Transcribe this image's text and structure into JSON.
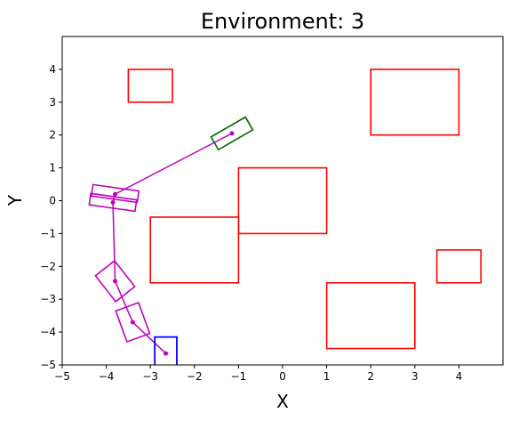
{
  "chart_data": {
    "type": "path-planning-plot",
    "title": "Environment: 3",
    "xlabel": "X",
    "ylabel": "Y",
    "xlim": [
      -5,
      5
    ],
    "ylim": [
      -5,
      5
    ],
    "xticks": [
      -5,
      -4,
      -3,
      -2,
      -1,
      0,
      1,
      2,
      3,
      4
    ],
    "yticks": [
      -5,
      -4,
      -3,
      -2,
      -1,
      0,
      1,
      2,
      3,
      4
    ],
    "grid": false,
    "colors": {
      "obstacle": "#ff0000",
      "start": "#0000ff",
      "goal": "#006400",
      "path": "#bf00bf"
    },
    "obstacles": [
      {
        "x": -3.5,
        "y": 3.0,
        "w": 1.0,
        "h": 1.0
      },
      {
        "x": 2.0,
        "y": 2.0,
        "w": 2.0,
        "h": 2.0
      },
      {
        "x": -1.0,
        "y": -1.0,
        "w": 2.0,
        "h": 2.0
      },
      {
        "x": -3.0,
        "y": -2.5,
        "w": 2.0,
        "h": 2.0
      },
      {
        "x": 3.5,
        "y": -2.5,
        "w": 1.0,
        "h": 1.0
      },
      {
        "x": 1.0,
        "y": -4.5,
        "w": 2.0,
        "h": 2.0
      }
    ],
    "start": {
      "cx": -2.65,
      "cy": -4.7,
      "w": 0.5,
      "h": 1.1,
      "angle": 0
    },
    "goal": {
      "cx": -1.15,
      "cy": 2.05,
      "w": 0.9,
      "h": 0.45,
      "angle": 30
    },
    "path": [
      {
        "x": -2.65,
        "y": -4.65
      },
      {
        "x": -3.4,
        "y": -3.7
      },
      {
        "x": -3.8,
        "y": -2.45
      },
      {
        "x": -3.85,
        "y": -0.05
      },
      {
        "x": -3.8,
        "y": 0.2
      },
      {
        "x": -1.15,
        "y": 2.05
      }
    ],
    "path_boxes": [
      {
        "cx": -3.4,
        "cy": -3.7,
        "w": 0.55,
        "h": 1.0,
        "angle": 20
      },
      {
        "cx": -3.8,
        "cy": -2.45,
        "w": 0.55,
        "h": 1.0,
        "angle": 38
      },
      {
        "cx": -3.85,
        "cy": -0.05,
        "w": 1.05,
        "h": 0.35,
        "angle": -8
      },
      {
        "cx": -3.8,
        "cy": 0.22,
        "w": 1.05,
        "h": 0.35,
        "angle": -8
      }
    ]
  }
}
